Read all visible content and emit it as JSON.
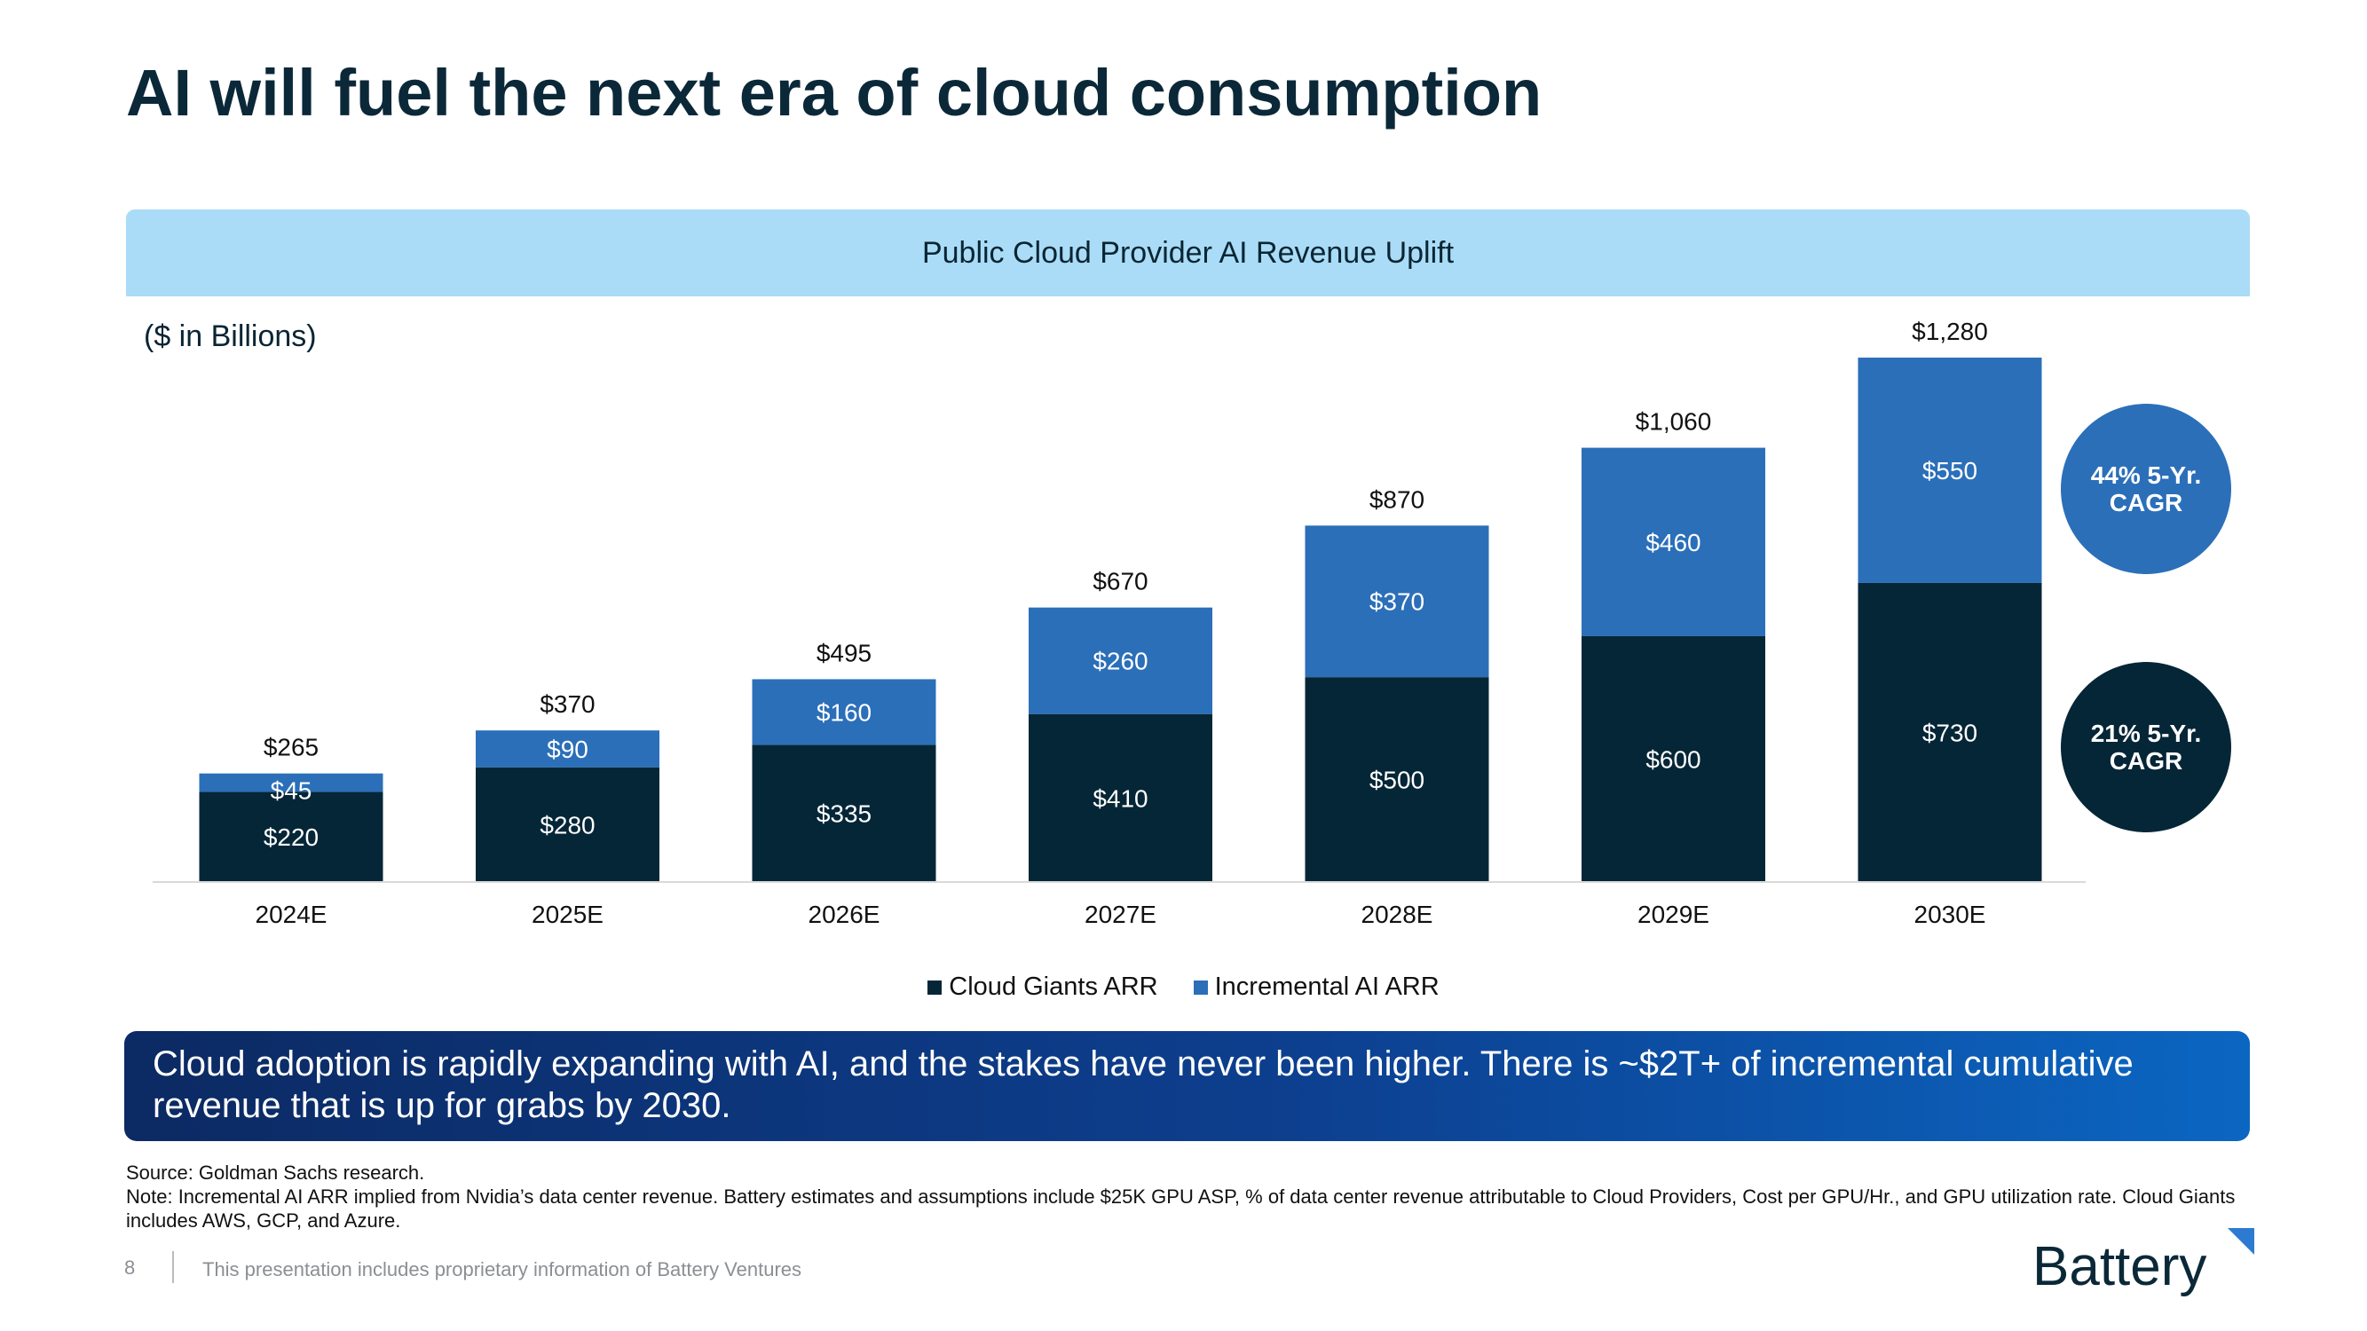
{
  "slide": {
    "title": "AI will fuel the next era of cloud consumption",
    "chart_header": "Public Cloud Provider AI Revenue Uplift",
    "units_label": "($ in Billions)",
    "callout": "Cloud adoption is rapidly expanding with AI, and the stakes have never been higher.  There is ~$2T+ of incremental cumulative revenue that is up for grabs by 2030.",
    "source_note": "Source: Goldman Sachs research.",
    "note_1": "Note: Incremental AI ARR implied from Nvidia’s data center revenue. Battery estimates and assumptions include $25K GPU ASP, % of data center revenue attributable to Cloud Providers, Cost per GPU/Hr., and GPU utilization rate. Cloud Giants includes AWS, GCP, and Azure.",
    "page_number": "8",
    "footer_text": "This presentation includes proprietary information of Battery Ventures",
    "logo_text": "Battery"
  },
  "cagr": {
    "incremental": "44% 5-Yr. CAGR",
    "giants": "21% 5-Yr. CAGR"
  },
  "colors": {
    "giants": "#052637",
    "incremental": "#2b6fb9",
    "banner": "#aadcf7",
    "incremental_cagr": "#2b6fb9",
    "giants_cagr": "#052637"
  },
  "chart_data": {
    "type": "bar",
    "stacked": true,
    "categories": [
      "2024E",
      "2025E",
      "2026E",
      "2027E",
      "2028E",
      "2029E",
      "2030E"
    ],
    "series": [
      {
        "name": "Cloud Giants ARR",
        "values": [
          220,
          280,
          335,
          410,
          500,
          600,
          730
        ],
        "labels": [
          "$220",
          "$280",
          "$335",
          "$410",
          "$500",
          "$600",
          "$730"
        ]
      },
      {
        "name": "Incremental AI ARR",
        "values": [
          45,
          90,
          160,
          260,
          370,
          460,
          550
        ],
        "labels": [
          "$45",
          "$90",
          "$160",
          "$260",
          "$370",
          "$460",
          "$550"
        ]
      }
    ],
    "totals": [
      265,
      370,
      495,
      670,
      870,
      1060,
      1280
    ],
    "total_labels": [
      "$265",
      "$370",
      "$495",
      "$670",
      "$870",
      "$1,060",
      "$1,280"
    ],
    "ylim": [
      0,
      1300
    ],
    "grid": false,
    "legend_position": "bottom"
  }
}
